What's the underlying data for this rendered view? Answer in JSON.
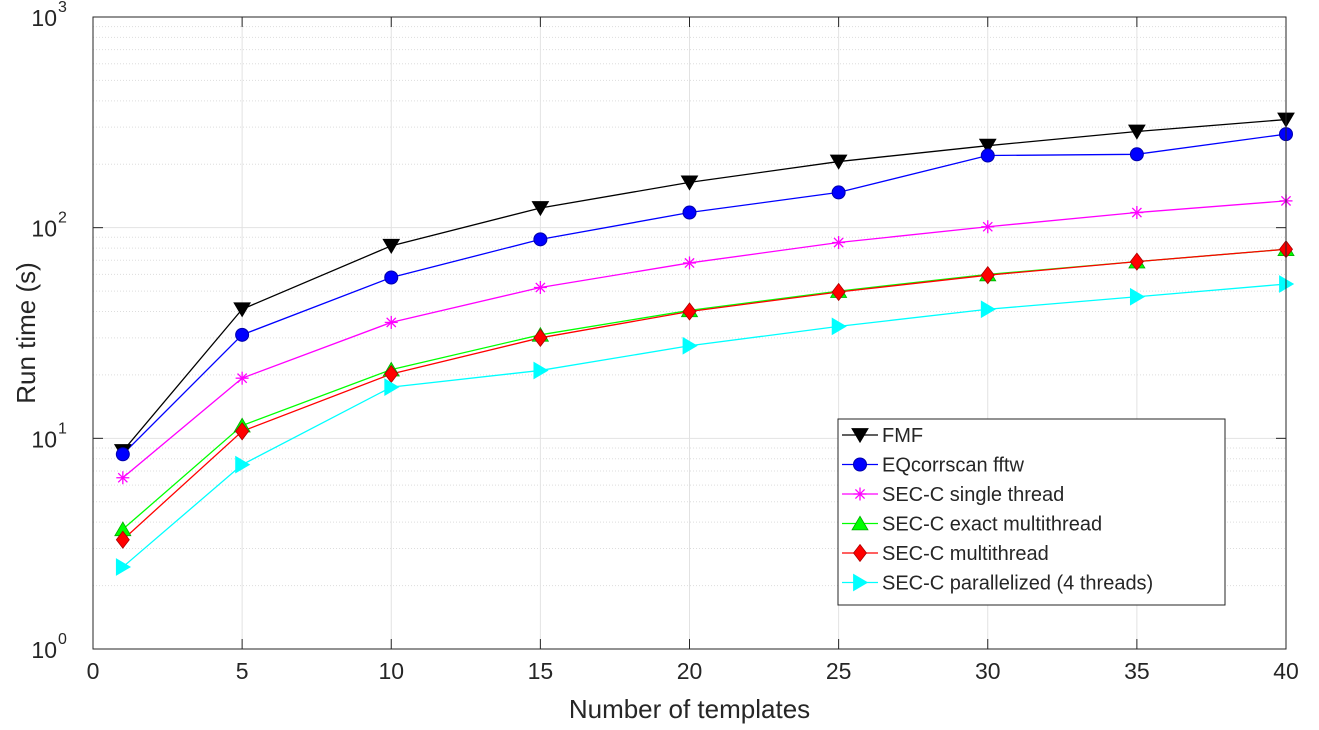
{
  "chart_data": {
    "type": "line",
    "title": "",
    "xlabel": "Number of templates",
    "ylabel": "Run time (s)",
    "xlim": [
      0,
      40
    ],
    "ylim": [
      1,
      1000
    ],
    "yscale": "log",
    "grid": true,
    "minor_grid": true,
    "legend_position": "lower-right",
    "x_ticks": [
      "0",
      "5",
      "10",
      "15",
      "20",
      "25",
      "30",
      "35",
      "40"
    ],
    "y_ticks": [
      {
        "base": "10",
        "exp": "0",
        "value": 1
      },
      {
        "base": "10",
        "exp": "1",
        "value": 10
      },
      {
        "base": "10",
        "exp": "2",
        "value": 100
      },
      {
        "base": "10",
        "exp": "3",
        "value": 1000
      }
    ],
    "x": [
      1,
      5,
      10,
      15,
      20,
      25,
      30,
      35,
      40
    ],
    "series": [
      {
        "name": "FMF",
        "color": "#000000",
        "marker": "triangle-down",
        "values": [
          8.7,
          41,
          82,
          124,
          164,
          206,
          245,
          286,
          326
        ]
      },
      {
        "name": "EQcorrscan fftw",
        "color": "#0000ff",
        "marker": "circle",
        "values": [
          8.4,
          31,
          58,
          88,
          118,
          147,
          220,
          223,
          278
        ]
      },
      {
        "name": "SEC-C single thread",
        "color": "#ff00ff",
        "marker": "asterisk",
        "values": [
          6.5,
          19.3,
          35.5,
          52,
          68,
          85,
          101,
          118,
          134
        ]
      },
      {
        "name": "SEC-C exact multithread",
        "color": "#00ff00",
        "marker": "triangle-up",
        "values": [
          3.7,
          11.5,
          21.2,
          31,
          40.5,
          50,
          60,
          69,
          79
        ]
      },
      {
        "name": "SEC-C  multithread",
        "color": "#ff0000",
        "marker": "diamond",
        "values": [
          3.3,
          10.8,
          20.2,
          30,
          40,
          49.5,
          59.5,
          69,
          79
        ]
      },
      {
        "name": "SEC-C parallelized (4 threads)",
        "color": "#00ffff",
        "marker": "triangle-right",
        "values": [
          2.45,
          7.5,
          17.5,
          21,
          27.5,
          34,
          41,
          47,
          54
        ]
      }
    ]
  }
}
